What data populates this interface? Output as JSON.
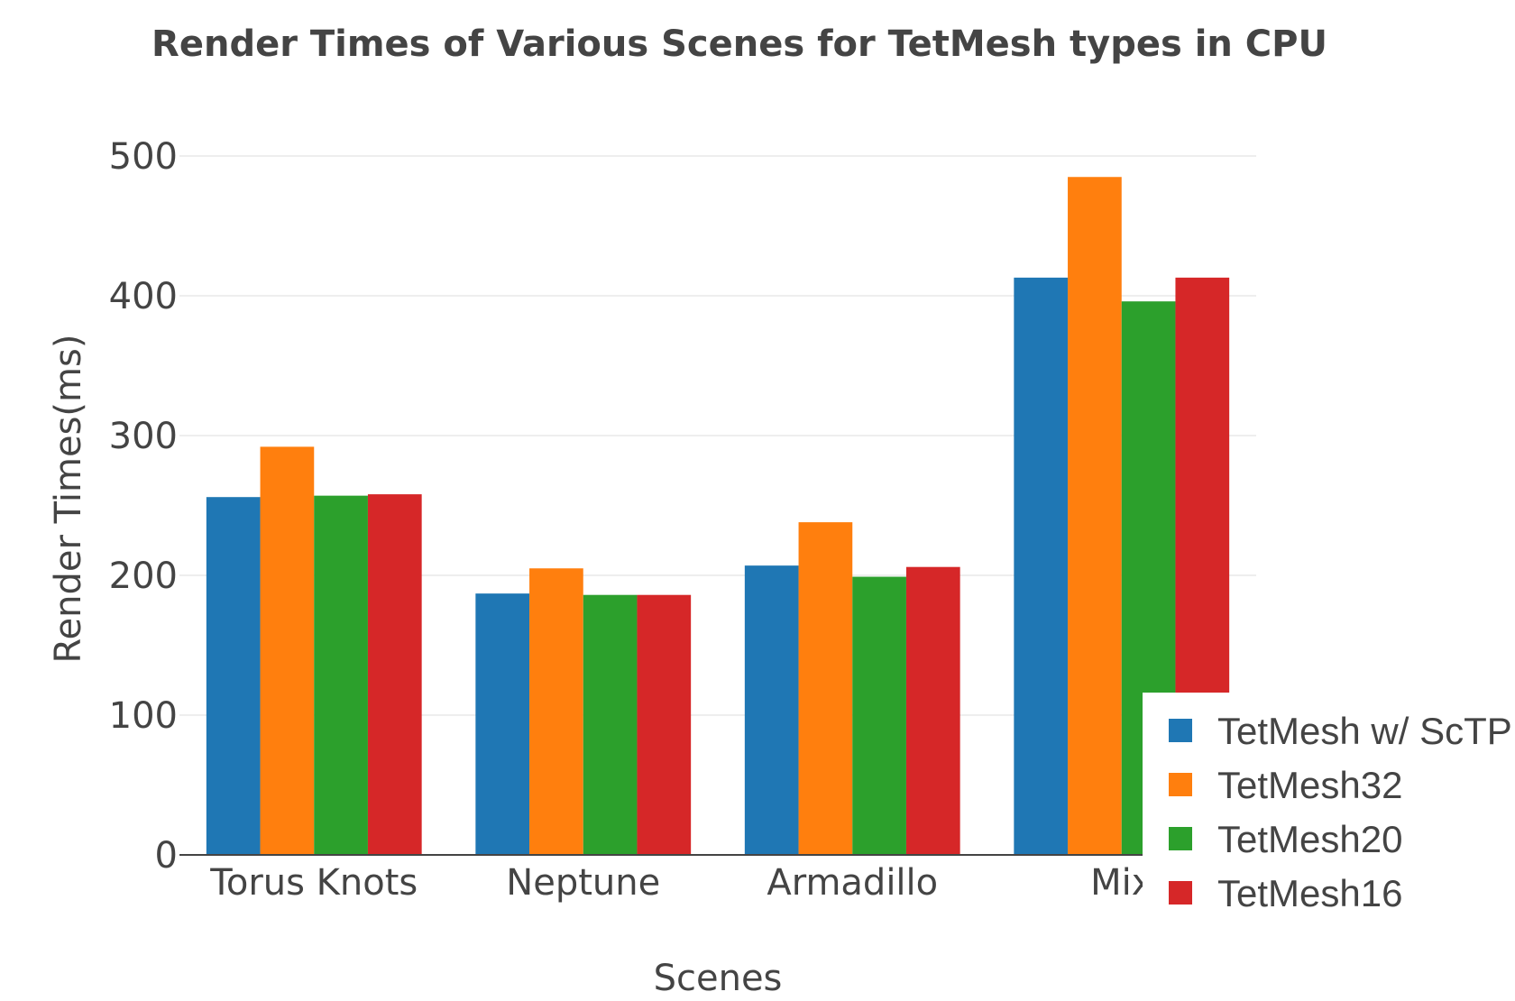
{
  "chart_data": {
    "type": "bar",
    "title": "Render Times of Various Scenes for TetMesh types in CPU",
    "xlabel": "Scenes",
    "ylabel": "Render Times(ms)",
    "ylim": [
      0,
      500
    ],
    "yticks": [
      0,
      100,
      200,
      300,
      400,
      500
    ],
    "grid": true,
    "legend_position": "bottom-right",
    "categories": [
      "Torus Knots",
      "Neptune",
      "Armadillo",
      "Mix"
    ],
    "series": [
      {
        "name": "TetMesh w/ ScTP",
        "color": "#1f77b4",
        "values": [
          256,
          187,
          207,
          413
        ]
      },
      {
        "name": "TetMesh32",
        "color": "#ff7f0e",
        "values": [
          292,
          205,
          238,
          485
        ]
      },
      {
        "name": "TetMesh20",
        "color": "#2ca02c",
        "values": [
          257,
          186,
          199,
          396
        ]
      },
      {
        "name": "TetMesh16",
        "color": "#d62728",
        "values": [
          258,
          186,
          206,
          413
        ]
      }
    ]
  }
}
